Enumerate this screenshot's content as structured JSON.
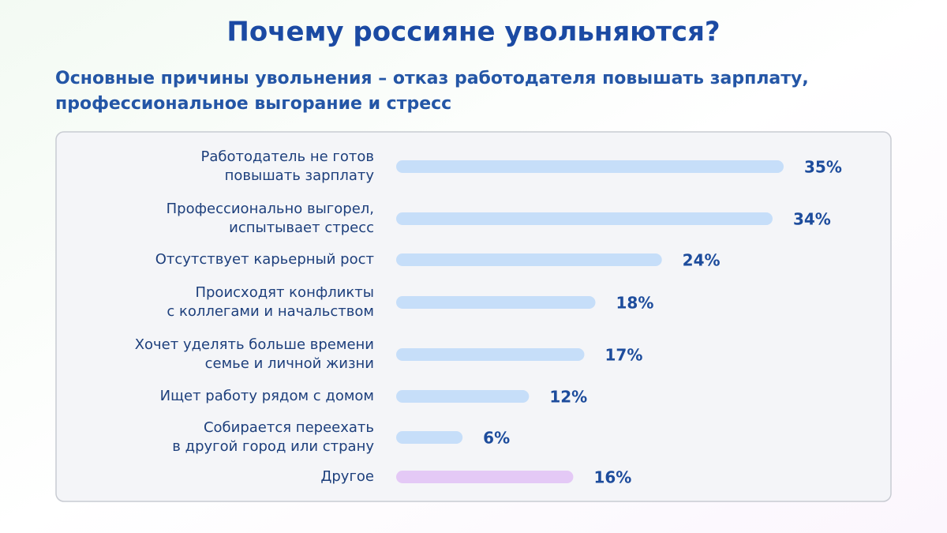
{
  "chart_data": {
    "type": "bar",
    "title": "Почему россияне увольняются?",
    "subtitle": [
      "Основные причины увольнения – отказ работодателя повышать зарплату,",
      "профессиональное выгорание и стресс"
    ],
    "categories": [
      [
        "Работодатель не готов",
        "повышать зарплату"
      ],
      [
        "Профессионально выгорел,",
        "испытывает стресс"
      ],
      [
        "Отсутствует карьерный рост"
      ],
      [
        "Происходят конфликты",
        "с коллегами и начальством"
      ],
      [
        "Хочет уделять больше времени",
        "семье и личной жизни"
      ],
      [
        "Ищет работу рядом с домом"
      ],
      [
        "Собирается переехать",
        "в другой город или страну"
      ],
      [
        "Другое"
      ]
    ],
    "values": [
      35,
      34,
      24,
      18,
      17,
      12,
      6,
      16
    ],
    "value_labels": [
      "35%",
      "34%",
      "24%",
      "18%",
      "17%",
      "12%",
      "6%",
      "16%"
    ],
    "colors": [
      "#c6def9",
      "#c6def9",
      "#c6def9",
      "#c6def9",
      "#c6def9",
      "#c6def9",
      "#c6def9",
      "#e4c9f6"
    ]
  }
}
